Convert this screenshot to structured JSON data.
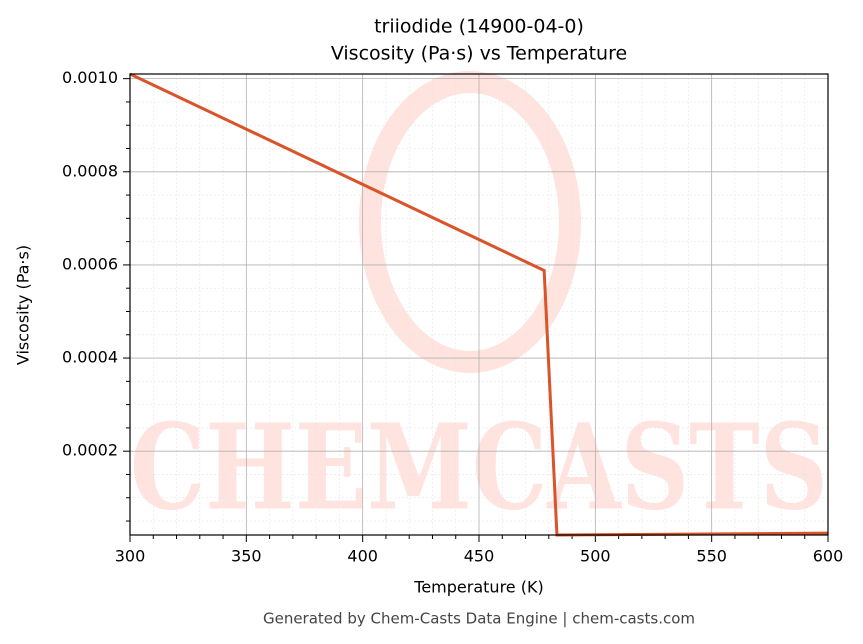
{
  "chart_data": {
    "type": "line",
    "title": "triiodide (14900-04-0)",
    "subtitle": "Viscosity (Pa·s) vs Temperature",
    "x_label": "Temperature (K)",
    "y_label": "Viscosity (Pa·s)",
    "footer": "Generated by Chem-Casts Data Engine | chem-casts.com",
    "watermark": "CHEMCASTS",
    "series": [
      {
        "name": "Viscosity",
        "color": "#d9542a",
        "x": [
          300,
          478,
          483.5,
          600
        ],
        "values": [
          0.00101,
          0.000588,
          2e-05,
          2.4e-05
        ]
      }
    ],
    "xlim": [
      300,
      600
    ],
    "xticks": [
      300,
      350,
      400,
      450,
      500,
      550,
      600
    ],
    "xminorticks": [
      310,
      320,
      330,
      340,
      360,
      370,
      380,
      390,
      410,
      420,
      430,
      440,
      460,
      470,
      480,
      490,
      510,
      520,
      530,
      540,
      560,
      570,
      580,
      590
    ],
    "ylim": [
      2e-05,
      0.00101
    ],
    "yticks": [
      0.0002,
      0.0004,
      0.0006,
      0.0008,
      {
        "value": 0.001,
        "label": "0.0010"
      }
    ],
    "yminorticks": [
      5e-05,
      0.0001,
      0.00015,
      0.00025,
      0.0003,
      0.00035,
      0.00045,
      0.0005,
      0.00055,
      0.00065,
      0.0007,
      0.00075,
      0.00085,
      0.0009,
      0.00095
    ],
    "grid": true,
    "minor_grid": true
  }
}
